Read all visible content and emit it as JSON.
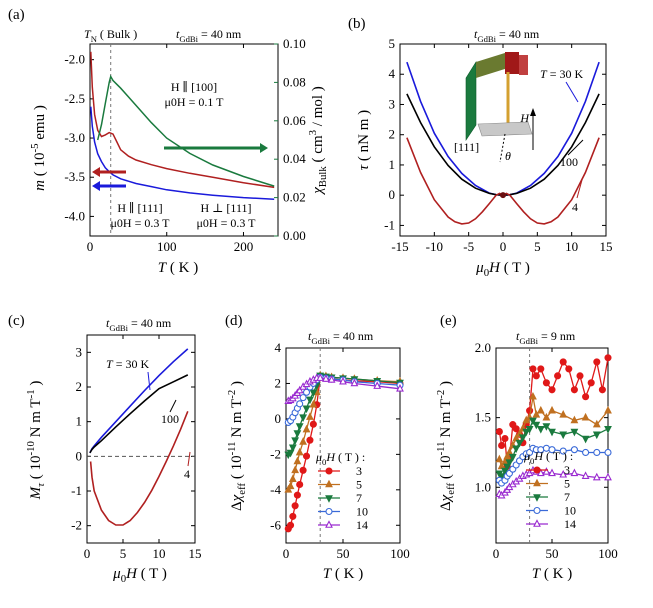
{
  "figure": {
    "panel_letters": [
      "(a)",
      "(b)",
      "(c)",
      "(d)",
      "(e)"
    ]
  },
  "chart_data": [
    {
      "panel": "(a)",
      "type": "line",
      "header": "t_GdBi = 40 nm",
      "xlabel": "T ( K )",
      "ylabel": "m ( 10^-5 emu )",
      "y2label": "χ_Bulk ( cm^3 / mol )",
      "xlim": [
        0,
        245
      ],
      "ylim": [
        -4.25,
        -1.8
      ],
      "y2lim": [
        0,
        0.1
      ],
      "x_ticks": [
        0,
        100,
        200
      ],
      "y_ticks": [
        -2.0,
        -2.5,
        -3.0,
        -3.5,
        -4.0
      ],
      "y2_ticks": [
        0.0,
        0.02,
        0.04,
        0.06,
        0.08,
        0.1
      ],
      "y_tick_labels": [
        "-2.0",
        "-2.5",
        "-3.0",
        "-3.5",
        "-4.0"
      ],
      "y2_tick_labels": [
        "0.00",
        "0.02",
        "0.04",
        "0.06",
        "0.08",
        "0.10"
      ],
      "vline_x": 27,
      "annotations": {
        "tn": "T_N ( Bulk )",
        "green1": "H ∥ [100]",
        "green2": "μ0H = 0.1 T",
        "blue1": "H ∥ [111]",
        "blue2": "μ0H = 0.3 T",
        "red1": "H ⊥ [111]",
        "red2": "μ0H = 0.3 T"
      },
      "series": [
        {
          "color": "#1a1adb",
          "axis": "left",
          "x": [
            1,
            3,
            6,
            10,
            15,
            20,
            25,
            30,
            40,
            60,
            80,
            100,
            130,
            160,
            200,
            240
          ],
          "y": [
            -2.6,
            -2.85,
            -3.05,
            -3.2,
            -3.3,
            -3.38,
            -3.43,
            -3.47,
            -3.52,
            -3.58,
            -3.62,
            -3.66,
            -3.7,
            -3.73,
            -3.76,
            -3.78
          ]
        },
        {
          "color": "#b02020",
          "axis": "left",
          "x": [
            1,
            3,
            6,
            10,
            15,
            20,
            25,
            30,
            35,
            40,
            50,
            60,
            80,
            100,
            130,
            160,
            200,
            240
          ],
          "y": [
            -1.9,
            -2.35,
            -2.7,
            -2.9,
            -2.98,
            -2.96,
            -2.93,
            -2.95,
            -3.05,
            -3.15,
            -3.23,
            -3.28,
            -3.34,
            -3.39,
            -3.45,
            -3.5,
            -3.57,
            -3.63
          ]
        },
        {
          "color": "#1a7a3e",
          "axis": "right",
          "x": [
            10,
            15,
            20,
            25,
            27,
            30,
            40,
            60,
            80,
            100,
            130,
            160,
            200,
            240
          ],
          "y": [
            0.05,
            0.058,
            0.069,
            0.08,
            0.083,
            0.081,
            0.077,
            0.068,
            0.059,
            0.051,
            0.043,
            0.037,
            0.031,
            0.026
          ]
        }
      ]
    },
    {
      "panel": "(b)",
      "type": "line",
      "header": "t_GdBi = 40 nm",
      "xlabel": "μ0H ( T )",
      "ylabel": "τ ( nN m )",
      "xlim": [
        -15,
        15
      ],
      "ylim": [
        -1.35,
        5
      ],
      "x_ticks": [
        -15,
        -10,
        -5,
        0,
        5,
        10,
        15
      ],
      "y_ticks": [
        -1,
        0,
        1,
        2,
        3,
        4,
        5
      ],
      "annotations": {
        "t30": "T = 30 K",
        "t100": "100",
        "t4": "4",
        "h": "H",
        "dir": "[111]",
        "theta": "θ"
      },
      "series": [
        {
          "name": "T = 30 K",
          "color": "#1a1adb",
          "x": [
            -14,
            -12,
            -10,
            -8,
            -6,
            -4,
            -2,
            -1,
            0,
            1,
            2,
            4,
            6,
            8,
            10,
            12,
            14
          ],
          "y": [
            4.4,
            3.1,
            2.05,
            1.28,
            0.72,
            0.32,
            0.07,
            0.015,
            0,
            0.015,
            0.07,
            0.32,
            0.72,
            1.28,
            2.05,
            3.1,
            4.4
          ]
        },
        {
          "name": "100",
          "color": "#000000",
          "x": [
            -14,
            -12,
            -10,
            -8,
            -6,
            -4,
            -2,
            -1,
            0,
            1,
            2,
            4,
            6,
            8,
            10,
            12,
            14
          ],
          "y": [
            3.35,
            2.4,
            1.6,
            0.98,
            0.53,
            0.23,
            0.06,
            0.015,
            0,
            0.015,
            0.06,
            0.23,
            0.53,
            0.98,
            1.6,
            2.4,
            3.35
          ]
        },
        {
          "name": "4",
          "color": "#b02020",
          "x": [
            -14,
            -12,
            -10,
            -8,
            -7,
            -6,
            -5,
            -4,
            -3,
            -2,
            -1,
            -0.5,
            0,
            0.5,
            1,
            2,
            3,
            4,
            5,
            6,
            7,
            8,
            10,
            12,
            14
          ],
          "y": [
            1.9,
            0.75,
            -0.15,
            -0.72,
            -0.88,
            -0.95,
            -0.92,
            -0.78,
            -0.55,
            -0.28,
            0.0,
            0.06,
            0.0,
            0.06,
            0.0,
            -0.28,
            -0.55,
            -0.78,
            -0.92,
            -0.95,
            -0.88,
            -0.72,
            -0.15,
            0.75,
            1.9
          ]
        }
      ]
    },
    {
      "panel": "(c)",
      "type": "line",
      "header": "t_GdBi = 40 nm",
      "xlabel": "μ0H ( T )",
      "ylabel": "M_τ ( 10^-10 N m T^-1 )",
      "xlim": [
        0,
        15
      ],
      "ylim": [
        -2.5,
        3.5
      ],
      "x_ticks": [
        0,
        5,
        10,
        15
      ],
      "y_ticks": [
        -2,
        -1,
        0,
        1,
        2,
        3
      ],
      "zero_line": 0,
      "annotations": {
        "t30": "T = 30 K",
        "t100": "100",
        "t4": "4"
      },
      "series": [
        {
          "name": "T = 30 K",
          "color": "#1a1adb",
          "x": [
            0.4,
            0.7,
            1,
            2,
            4,
            6,
            8,
            10,
            12,
            14
          ],
          "y": [
            0.1,
            0.22,
            0.3,
            0.55,
            1.0,
            1.45,
            1.9,
            2.33,
            2.73,
            3.1
          ]
        },
        {
          "name": "100",
          "color": "#000000",
          "x": [
            0.4,
            0.7,
            1,
            2,
            4,
            6,
            8,
            10,
            12,
            14
          ],
          "y": [
            0.1,
            0.2,
            0.27,
            0.45,
            0.85,
            1.23,
            1.6,
            1.95,
            2.15,
            2.35
          ]
        },
        {
          "name": "4",
          "color": "#b02020",
          "x": [
            0.5,
            0.7,
            1,
            2,
            3,
            4,
            5,
            6,
            7,
            8,
            9,
            10,
            11,
            12,
            13,
            14
          ],
          "y": [
            -0.15,
            -0.6,
            -1.0,
            -1.55,
            -1.85,
            -1.98,
            -1.98,
            -1.85,
            -1.62,
            -1.33,
            -0.98,
            -0.58,
            -0.15,
            0.3,
            0.78,
            1.3
          ]
        }
      ]
    },
    {
      "panel": "(d)",
      "type": "line",
      "header": "t_GdBi = 40 nm",
      "xlabel": "T ( K )",
      "ylabel": "Δχ_eff ( 10^-11 N m T^-2 )",
      "xlim": [
        0,
        100
      ],
      "ylim": [
        -7,
        4
      ],
      "x_ticks": [
        0,
        50,
        100
      ],
      "y_ticks": [
        -6,
        -4,
        -2,
        0,
        2,
        4
      ],
      "vline_x": 30,
      "legend_title": "μ0H ( T ) :",
      "legend_position": "bottom-right",
      "series": [
        {
          "name": "3",
          "color": "#e01818",
          "marker": "circle-filled",
          "x": [
            2,
            4,
            6,
            8,
            10,
            12,
            15,
            18,
            21,
            24,
            27,
            30,
            35,
            40,
            50,
            60,
            80,
            100
          ],
          "y": [
            -6.2,
            -6.0,
            -5.5,
            -4.9,
            -4.3,
            -3.7,
            -2.9,
            -2.1,
            -1.2,
            -0.3,
            0.8,
            2.35,
            2.3,
            2.25,
            2.2,
            2.15,
            2.1,
            2.0
          ]
        },
        {
          "name": "5",
          "color": "#c07020",
          "marker": "triangle-up-filled",
          "x": [
            2,
            4,
            6,
            8,
            10,
            12,
            15,
            18,
            21,
            24,
            27,
            30,
            35,
            40,
            50,
            60,
            80,
            100
          ],
          "y": [
            -4.0,
            -3.8,
            -3.4,
            -2.9,
            -2.4,
            -1.9,
            -1.3,
            -0.6,
            0.1,
            0.8,
            1.5,
            2.45,
            2.4,
            2.35,
            2.3,
            2.25,
            2.15,
            2.1
          ]
        },
        {
          "name": "7",
          "color": "#1a7a3e",
          "marker": "triangle-down-filled",
          "x": [
            2,
            4,
            6,
            8,
            10,
            12,
            15,
            18,
            21,
            24,
            27,
            30,
            35,
            40,
            50,
            60,
            80,
            100
          ],
          "y": [
            -2.0,
            -1.9,
            -1.6,
            -1.2,
            -0.8,
            -0.4,
            0.1,
            0.6,
            1.1,
            1.5,
            1.9,
            2.45,
            2.4,
            2.35,
            2.3,
            2.25,
            2.15,
            2.05
          ]
        },
        {
          "name": "10",
          "color": "#3a6ad8",
          "marker": "circle-open",
          "x": [
            2,
            4,
            6,
            8,
            10,
            12,
            15,
            18,
            21,
            24,
            27,
            30,
            35,
            40,
            50,
            60,
            80,
            100
          ],
          "y": [
            -0.2,
            -0.1,
            0.1,
            0.35,
            0.6,
            0.85,
            1.2,
            1.5,
            1.8,
            2.0,
            2.2,
            2.35,
            2.3,
            2.25,
            2.2,
            2.1,
            2.0,
            1.9
          ]
        },
        {
          "name": "14",
          "color": "#9a2ad0",
          "marker": "triangle-up-open",
          "x": [
            2,
            4,
            6,
            8,
            10,
            12,
            15,
            18,
            21,
            24,
            27,
            30,
            35,
            40,
            50,
            60,
            80,
            100
          ],
          "y": [
            1.0,
            1.05,
            1.15,
            1.3,
            1.45,
            1.6,
            1.8,
            1.95,
            2.1,
            2.2,
            2.3,
            2.3,
            2.25,
            2.2,
            2.1,
            2.0,
            1.85,
            1.7
          ]
        }
      ]
    },
    {
      "panel": "(e)",
      "type": "line",
      "header": "t_GdBi = 9 nm",
      "xlabel": "T ( K )",
      "ylabel": "Δχ_eff ( 10^-11 N m T^-2 )",
      "xlim": [
        0,
        100
      ],
      "ylim": [
        0.6,
        2.0
      ],
      "x_ticks": [
        0,
        50,
        100
      ],
      "y_ticks": [
        1.0,
        1.5,
        2.0
      ],
      "y_tick_labels": [
        "1.0",
        "1.5",
        "2.0"
      ],
      "vline_x": 30,
      "legend_title": "μ0H ( T ) :",
      "legend_position": "bottom-right",
      "series": [
        {
          "name": "3",
          "color": "#e01818",
          "marker": "circle-filled",
          "x": [
            3,
            5,
            8,
            10,
            12,
            15,
            18,
            21,
            24,
            27,
            30,
            33,
            36,
            40,
            45,
            50,
            55,
            60,
            65,
            70,
            75,
            80,
            85,
            90,
            95,
            100
          ],
          "y": [
            1.4,
            1.3,
            1.35,
            1.15,
            1.2,
            1.45,
            1.42,
            1.38,
            1.32,
            1.45,
            1.55,
            1.85,
            1.8,
            1.85,
            1.75,
            1.7,
            1.8,
            1.9,
            1.85,
            1.7,
            1.8,
            1.65,
            1.75,
            1.9,
            1.7,
            1.93
          ]
        },
        {
          "name": "5",
          "color": "#c07020",
          "marker": "triangle-up-filled",
          "x": [
            3,
            5,
            8,
            10,
            12,
            15,
            18,
            21,
            24,
            27,
            30,
            33,
            36,
            40,
            45,
            50,
            60,
            70,
            80,
            90,
            100
          ],
          "y": [
            1.2,
            1.15,
            1.18,
            1.22,
            1.25,
            1.3,
            1.35,
            1.38,
            1.42,
            1.48,
            1.5,
            1.65,
            1.52,
            1.55,
            1.5,
            1.55,
            1.52,
            1.48,
            1.5,
            1.45,
            1.55
          ]
        },
        {
          "name": "7",
          "color": "#1a7a3e",
          "marker": "triangle-down-filled",
          "x": [
            3,
            5,
            8,
            10,
            12,
            15,
            18,
            21,
            24,
            27,
            30,
            33,
            36,
            40,
            45,
            50,
            60,
            70,
            80,
            90,
            100
          ],
          "y": [
            1.1,
            1.08,
            1.12,
            1.15,
            1.18,
            1.22,
            1.28,
            1.32,
            1.36,
            1.4,
            1.42,
            1.48,
            1.45,
            1.42,
            1.44,
            1.4,
            1.38,
            1.4,
            1.35,
            1.38,
            1.42
          ]
        },
        {
          "name": "10",
          "color": "#3a6ad8",
          "marker": "circle-open",
          "x": [
            3,
            5,
            8,
            10,
            12,
            15,
            18,
            21,
            24,
            27,
            30,
            33,
            36,
            40,
            45,
            50,
            60,
            70,
            80,
            90,
            100
          ],
          "y": [
            1.05,
            1.03,
            1.05,
            1.08,
            1.1,
            1.13,
            1.16,
            1.19,
            1.22,
            1.24,
            1.25,
            1.28,
            1.27,
            1.27,
            1.28,
            1.27,
            1.26,
            1.27,
            1.25,
            1.25,
            1.25
          ]
        },
        {
          "name": "14",
          "color": "#9a2ad0",
          "marker": "triangle-up-open",
          "x": [
            3,
            5,
            8,
            10,
            12,
            15,
            18,
            21,
            24,
            27,
            30,
            33,
            36,
            40,
            45,
            50,
            60,
            70,
            80,
            90,
            100
          ],
          "y": [
            0.95,
            0.94,
            0.96,
            0.98,
            1.0,
            1.02,
            1.04,
            1.06,
            1.08,
            1.09,
            1.1,
            1.12,
            1.11,
            1.1,
            1.11,
            1.1,
            1.09,
            1.1,
            1.08,
            1.07,
            1.07
          ]
        }
      ]
    }
  ]
}
